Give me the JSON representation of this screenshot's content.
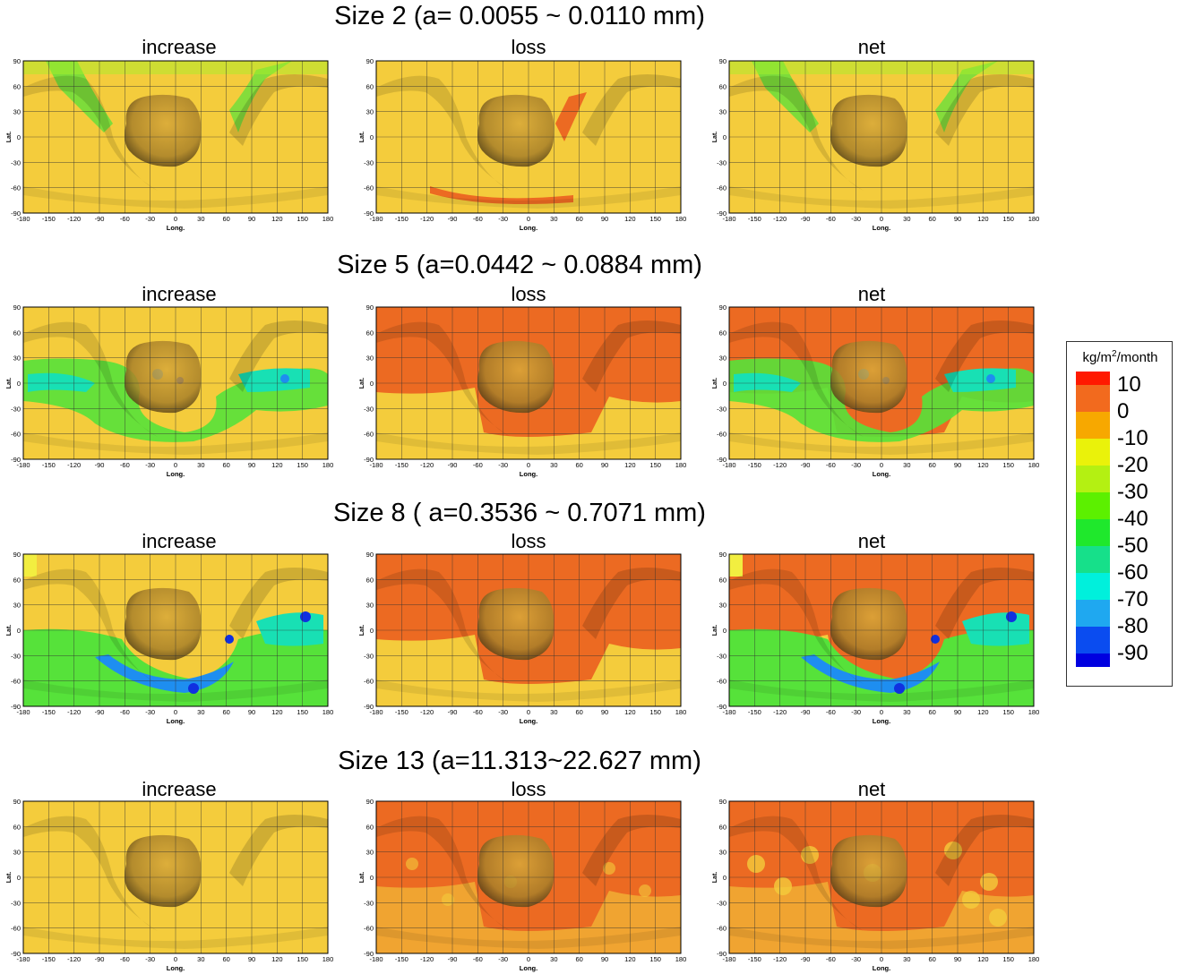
{
  "rows": [
    {
      "title": "Size 2 (a= 0.0055 ~ 0.0110 mm)"
    },
    {
      "title": "Size 5 (a=0.0442 ~ 0.0884 mm)"
    },
    {
      "title": "Size 8 ( a=0.3536 ~ 0.7071 mm)"
    },
    {
      "title": "Size 13 (a=11.313~22.627 mm)"
    }
  ],
  "panels": [
    "increase",
    "loss",
    "net"
  ],
  "axes": {
    "xlabel": "Long.",
    "ylabel": "Lat.",
    "xticks": [
      "-180",
      "-150",
      "-120",
      "-90",
      "-60",
      "-30",
      "0",
      "30",
      "60",
      "90",
      "120",
      "150",
      "180"
    ],
    "yticks": [
      "90",
      "60",
      "30",
      "0",
      "-30",
      "-60",
      "-90"
    ]
  },
  "legend": {
    "title_prefix": "kg/m",
    "title_sup": "2",
    "title_suffix": "/month",
    "colors": [
      "#ff1a00",
      "#f26a1e",
      "#f7a800",
      "#eaf20a",
      "#b4f012",
      "#5cf000",
      "#1fe82c",
      "#16e08a",
      "#00f0dc",
      "#1fa8f0",
      "#0a4cf0",
      "#0000e0"
    ],
    "labels": [
      "10",
      "0",
      "-10",
      "-20",
      "-30",
      "-40",
      "-50",
      "-60",
      "-70",
      "-80",
      "-90"
    ]
  },
  "chart_data": {
    "type": "heatmap",
    "title": "",
    "xlabel": "Long.",
    "ylabel": "Lat.",
    "xlim": [
      -180,
      180
    ],
    "ylim": [
      -90,
      90
    ],
    "grid": true,
    "legend_placement": "right",
    "colorbar_unit": "kg/m2/month",
    "colorbar_levels": [
      10,
      0,
      -10,
      -20,
      -30,
      -40,
      -50,
      -60,
      -70,
      -80,
      -90
    ],
    "panels": [
      {
        "size": "Size 2 (a= 0.0055 ~ 0.0110 mm)",
        "maps": [
          "increase",
          "loss",
          "net"
        ]
      },
      {
        "size": "Size 5 (a=0.0442 ~ 0.0884 mm)",
        "maps": [
          "increase",
          "loss",
          "net"
        ]
      },
      {
        "size": "Size 8 ( a=0.3536 ~ 0.7071 mm)",
        "maps": [
          "increase",
          "loss",
          "net"
        ]
      },
      {
        "size": "Size 13 (a=11.313~22.627 mm)",
        "maps": [
          "increase",
          "loss",
          "net"
        ]
      }
    ]
  }
}
